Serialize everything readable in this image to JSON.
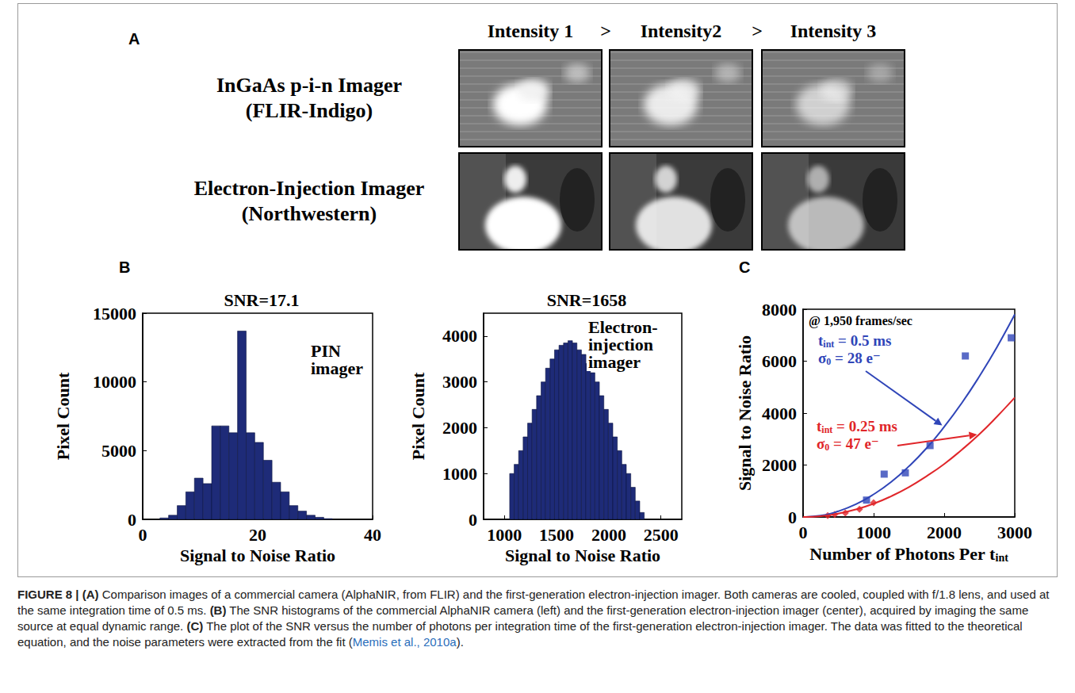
{
  "panel_letters": [
    "A",
    "B",
    "C"
  ],
  "panel_a": {
    "column_headers": [
      "Intensity 1",
      "Intensity2",
      "Intensity 3"
    ],
    "separator": ">",
    "rows": [
      [
        "InGaAs p-i-n Imager",
        "(FLIR-Indigo)"
      ],
      [
        "Electron-Injection Imager",
        "(Northwestern)"
      ]
    ]
  },
  "chart_data": [
    {
      "type": "histogram",
      "title": "SNR=17.1",
      "annotation": "PIN imager",
      "xlabel": "Signal to Noise Ratio",
      "ylabel": "Pixel Count",
      "bins": [
        3,
        4.5,
        6,
        7.5,
        9,
        10.5,
        12,
        13.5,
        15,
        16.5,
        18,
        19.5,
        21,
        22.5,
        24,
        25.5,
        27,
        28.5,
        30,
        31.5,
        33
      ],
      "counts": [
        100,
        300,
        1000,
        2000,
        3000,
        2600,
        6800,
        6800,
        6300,
        13700,
        6300,
        5600,
        4300,
        2700,
        2000,
        1000,
        600,
        300,
        150,
        50
      ],
      "color": "#1e2b78",
      "xlim": [
        0,
        40
      ],
      "xticks": [
        0,
        20,
        40
      ],
      "ylim": [
        0,
        15000
      ],
      "yticks": [
        0,
        5000,
        10000,
        15000
      ],
      "grid": false
    },
    {
      "type": "histogram",
      "title": "SNR=1658",
      "annotation": "Electron-injection imager",
      "xlabel": "Signal to Noise Ratio",
      "ylabel": "Pixel Count",
      "bins": [
        1050,
        1093,
        1136,
        1179,
        1222,
        1265,
        1308,
        1351,
        1394,
        1437,
        1480,
        1523,
        1566,
        1609,
        1652,
        1695,
        1738,
        1781,
        1824,
        1867,
        1910,
        1953,
        1996,
        2039,
        2082,
        2125,
        2168,
        2211,
        2254,
        2297,
        2340
      ],
      "counts": [
        1000,
        1200,
        1500,
        1800,
        2100,
        2400,
        2700,
        3000,
        3300,
        3500,
        3700,
        3800,
        3850,
        3900,
        3850,
        3700,
        3600,
        3400,
        3200,
        3000,
        2700,
        2400,
        2100,
        1800,
        1500,
        1200,
        1000,
        700,
        400,
        150
      ],
      "color": "#1e2b78",
      "xlim": [
        800,
        2700
      ],
      "xticks": [
        1000,
        1500,
        2000,
        2500
      ],
      "ylim": [
        0,
        4500
      ],
      "yticks": [
        0,
        1000,
        2000,
        3000,
        4000
      ],
      "grid": false
    },
    {
      "type": "scatter",
      "note": "@ 1,950 frames/sec",
      "xlabel": {
        "base": "Number of Photons Per t",
        "sub": "int"
      },
      "ylabel": "Signal to Noise Ratio",
      "xlim": [
        0,
        3000
      ],
      "xticks": [
        0,
        1000,
        2000,
        3000
      ],
      "ylim": [
        0,
        8000
      ],
      "yticks": [
        0,
        2000,
        4000,
        6000,
        8000
      ],
      "grid": false,
      "series": [
        {
          "type": "scatter",
          "marker": "square",
          "color": "#2f45b8",
          "x": [
            900,
            1150,
            1450,
            1800,
            2300,
            2950
          ],
          "values": [
            650,
            1650,
            1700,
            2750,
            6200,
            6900
          ]
        },
        {
          "type": "line",
          "line_style": "solid",
          "color": "#2f45b8",
          "x": [
            0,
            250,
            500,
            750,
            1000,
            1250,
            1500,
            1750,
            2000,
            2250,
            2500,
            2750,
            3000
          ],
          "values": [
            0,
            50,
            220,
            490,
            870,
            1350,
            1950,
            2650,
            3470,
            4390,
            5420,
            6550,
            7800
          ]
        },
        {
          "type": "scatter",
          "marker": "diamond",
          "color": "#e0262a",
          "x": [
            350,
            450,
            600,
            800,
            1000
          ],
          "values": [
            50,
            100,
            150,
            300,
            550
          ]
        },
        {
          "type": "line",
          "line_style": "solid",
          "color": "#e0262a",
          "x": [
            0,
            250,
            500,
            750,
            1000,
            1250,
            1500,
            1750,
            2000,
            2250,
            2500,
            2750,
            3000
          ],
          "values": [
            0,
            30,
            130,
            290,
            510,
            800,
            1150,
            1570,
            2040,
            2590,
            3190,
            3870,
            4600
          ]
        }
      ],
      "annotations": [
        {
          "color": "#2f45b8",
          "lines": [
            {
              "base": "t",
              "sub": "int",
              "text": " = 0.5 ms"
            },
            {
              "base": "σ",
              "sub": "0",
              "text": " = 28 e⁻"
            }
          ]
        },
        {
          "color": "#e0262a",
          "lines": [
            {
              "base": "t",
              "sub": "int",
              "text": " = 0.25 ms"
            },
            {
              "base": "σ",
              "sub": "0",
              "text": " = 47 e⁻"
            }
          ]
        }
      ]
    }
  ],
  "caption": [
    {
      "bold": "FIGURE 8 |"
    },
    {
      "bold": " (A)"
    },
    {
      "text": " Comparison images of a commercial camera (AlphaNIR, from FLIR) and the first-generation electron-injection imager. Both cameras are cooled, coupled with f/1.8 lens, and used at the same integration time of 0.5 ms. "
    },
    {
      "bold": "(B)"
    },
    {
      "text": " The SNR histograms of the commercial AlphaNIR camera (left) and the first-generation electron-injection imager (center), acquired by imaging the same source at equal dynamic range. "
    },
    {
      "bold": "(C)"
    },
    {
      "text": " The plot of the SNR versus the number of photons per integration time of the first-generation electron-injection imager. The data was fitted to the theoretical equation, and the noise parameters were extracted from the fit ("
    },
    {
      "link": "Memis et al., 2010a"
    },
    {
      "text": ")."
    }
  ]
}
